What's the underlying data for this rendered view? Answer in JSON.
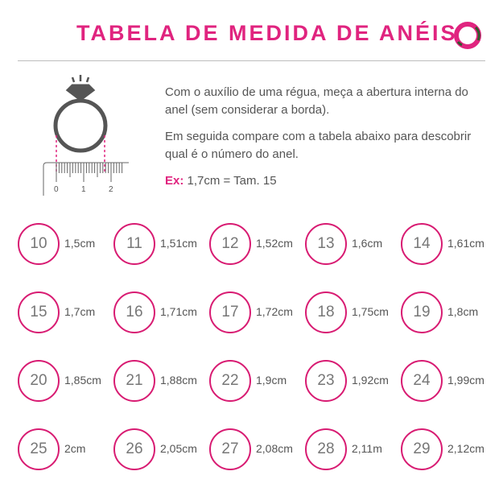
{
  "header": {
    "title": "TABELA DE MEDIDA DE ANÉIS",
    "logo_icon": "ring-logo-icon",
    "accent": "#e0247f"
  },
  "illustration": {
    "ruler_ticks": [
      "0",
      "1",
      "2"
    ]
  },
  "instructions": {
    "p1": "Com o auxílio de uma régua, meça a abertura interna do anel (sem considerar a borda).",
    "p2": "Em seguida compare com a tabela abaixo para descobrir qual é o número do anel.",
    "ex_label": "Ex:",
    "ex_text": " 1,7cm = Tam. 15"
  },
  "sizes": [
    {
      "n": "10",
      "d": "1,5cm"
    },
    {
      "n": "11",
      "d": "1,51cm"
    },
    {
      "n": "12",
      "d": "1,52cm"
    },
    {
      "n": "13",
      "d": "1,6cm"
    },
    {
      "n": "14",
      "d": "1,61cm"
    },
    {
      "n": "15",
      "d": "1,7cm"
    },
    {
      "n": "16",
      "d": "1,71cm"
    },
    {
      "n": "17",
      "d": "1,72cm"
    },
    {
      "n": "18",
      "d": "1,75cm"
    },
    {
      "n": "19",
      "d": "1,8cm"
    },
    {
      "n": "20",
      "d": "1,85cm"
    },
    {
      "n": "21",
      "d": "1,88cm"
    },
    {
      "n": "22",
      "d": "1,9cm"
    },
    {
      "n": "23",
      "d": "1,92cm"
    },
    {
      "n": "24",
      "d": "1,99cm"
    },
    {
      "n": "25",
      "d": "2cm"
    },
    {
      "n": "26",
      "d": "2,05cm"
    },
    {
      "n": "27",
      "d": "2,08cm"
    },
    {
      "n": "28",
      "d": "2,11m"
    },
    {
      "n": "29",
      "d": "2,12cm"
    }
  ]
}
